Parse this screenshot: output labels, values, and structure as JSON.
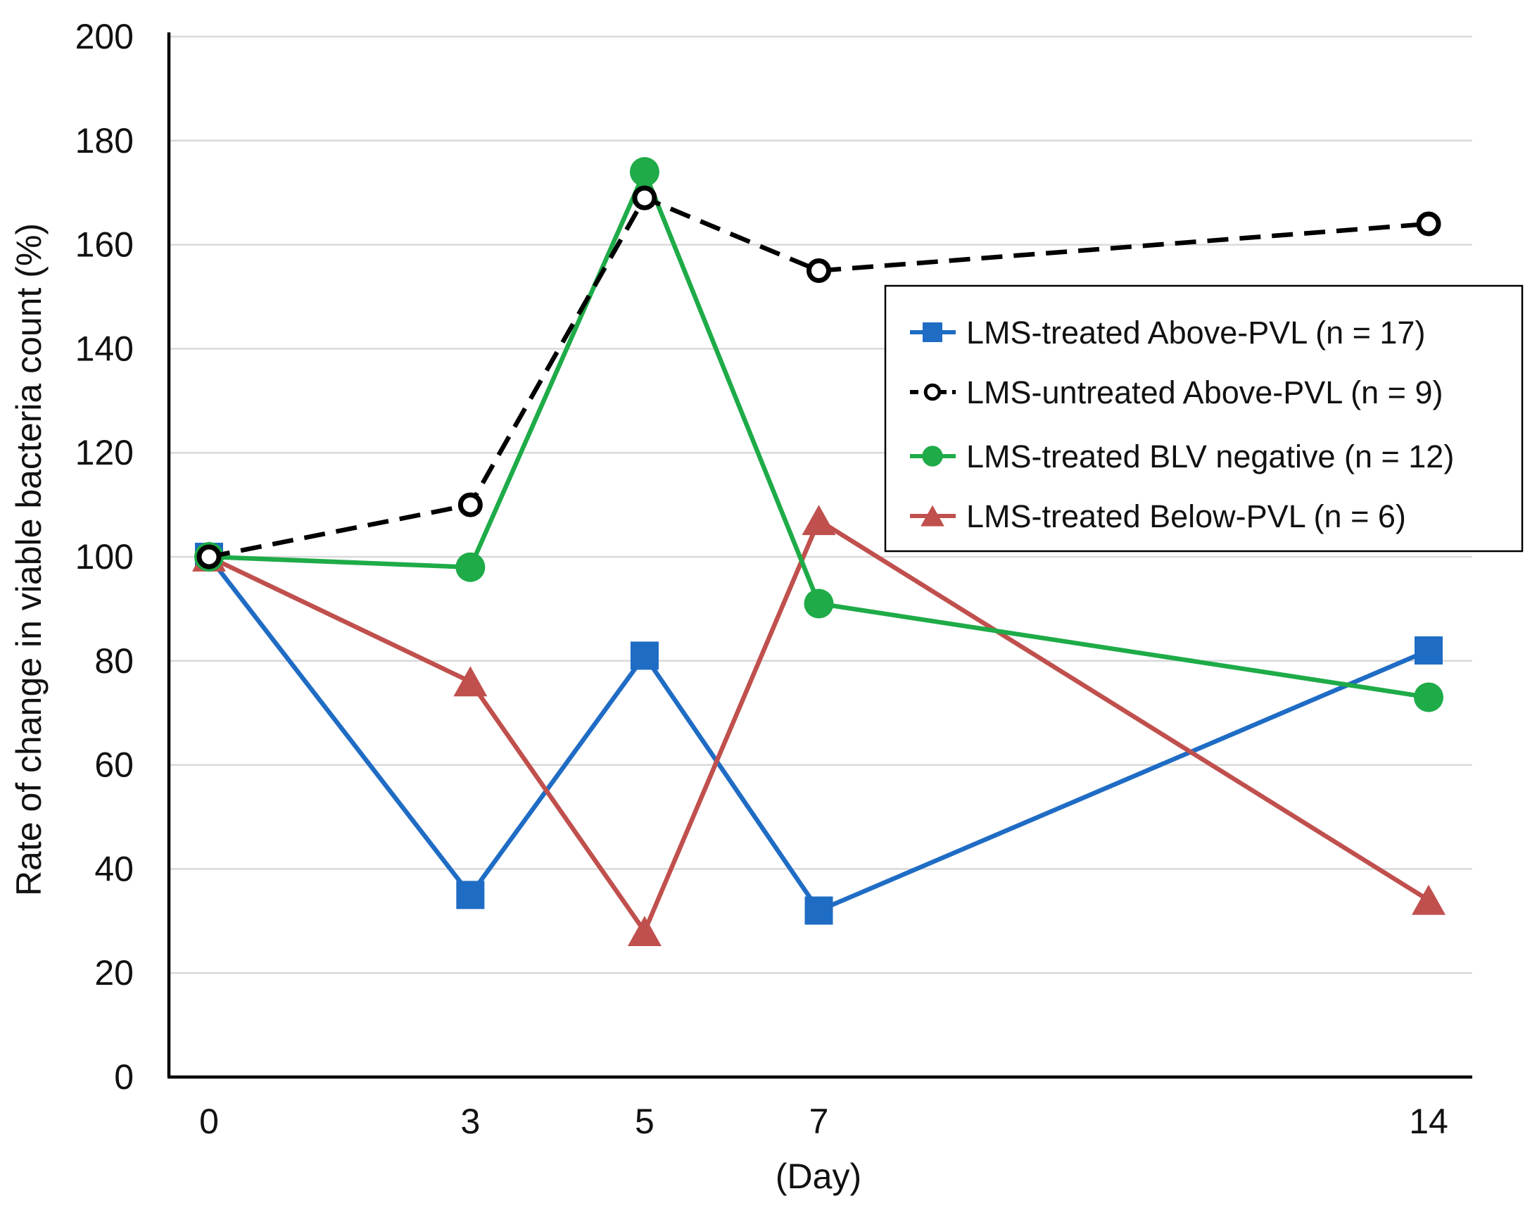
{
  "chart_data": {
    "type": "line",
    "title": "",
    "xlabel": "(Day)",
    "ylabel": "Rate of change in viable bacteria count  (%)",
    "x": [
      0,
      3,
      5,
      7,
      14
    ],
    "xticks": [
      "0",
      "3",
      "5",
      "7",
      "14"
    ],
    "ylim": [
      0,
      200
    ],
    "yticks": [
      "0",
      "20",
      "40",
      "60",
      "80",
      "100",
      "120",
      "140",
      "160",
      "180",
      "200"
    ],
    "grid": "horizontal",
    "legend_position": "right, upper-middle",
    "series": [
      {
        "name": "LMS-treated Above-PVL (n = 17)",
        "values": [
          100,
          35,
          81,
          32,
          82
        ],
        "color": "#1f6cc4",
        "marker": "square",
        "line": "solid"
      },
      {
        "name": "LMS-untreated Above-PVL (n = 9)",
        "values": [
          100,
          110,
          169,
          155,
          164
        ],
        "color": "#000000",
        "marker": "open-circle",
        "line": "dashed"
      },
      {
        "name": "LMS-treated BLV negative (n = 12)",
        "values": [
          100,
          98,
          174,
          91,
          73
        ],
        "color": "#1eab48",
        "marker": "circle",
        "line": "solid"
      },
      {
        "name": "LMS-treated Below-PVL (n = 6)",
        "values": [
          100,
          76,
          28,
          107,
          34
        ],
        "color": "#c0504d",
        "marker": "triangle",
        "line": "solid"
      }
    ]
  }
}
